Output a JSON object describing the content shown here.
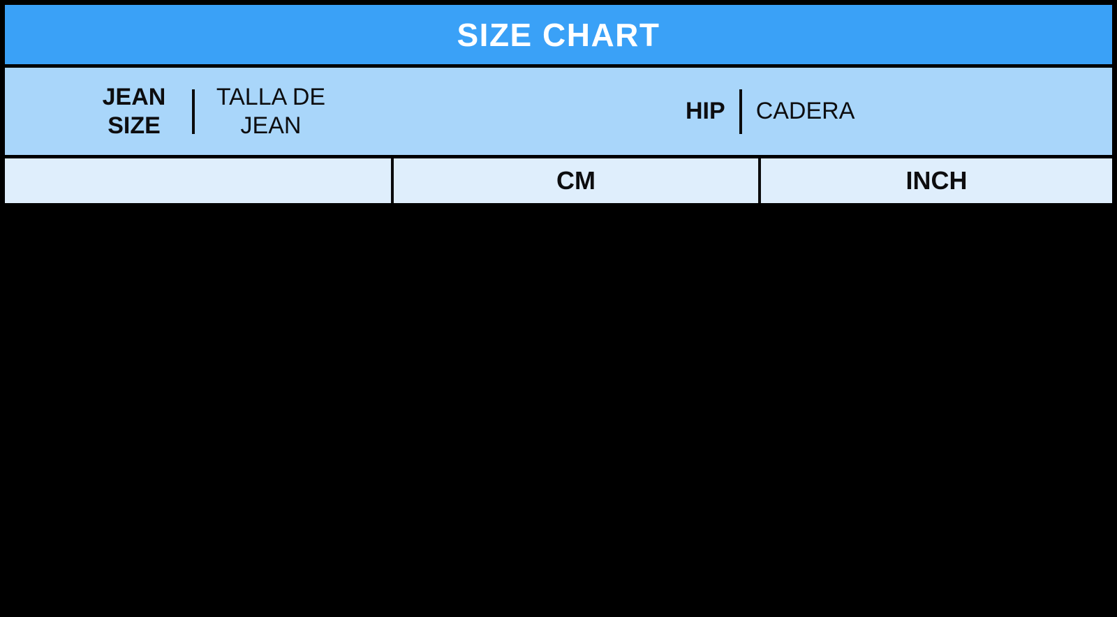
{
  "title": "SIZE CHART",
  "measure_header": {
    "jean_size_label": "JEAN SIZE",
    "jean_size_translation": "TALLA DE JEAN",
    "hip_label": "HIP",
    "hip_translation": "CADERA"
  },
  "unit_header": {
    "cm_label": "CM",
    "inch_label": "INCH"
  },
  "colors": {
    "title_bar_bg": "#3AA1F7",
    "measure_row_bg": "#A9D6FA",
    "unit_row_bg": "#DFEEFC",
    "border": "#000000",
    "title_text": "#FFFFFF",
    "label_text": "#0D0D0F"
  },
  "chart_data": {
    "type": "table",
    "title": "SIZE CHART",
    "columns": [
      {
        "id": "jean_size",
        "label_en": "JEAN SIZE",
        "label_es": "TALLA DE JEAN"
      },
      {
        "id": "hip_cm",
        "group_en": "HIP",
        "group_es": "CADERA",
        "unit": "CM"
      },
      {
        "id": "hip_inch",
        "group_en": "HIP",
        "group_es": "CADERA",
        "unit": "INCH"
      }
    ],
    "rows": []
  }
}
